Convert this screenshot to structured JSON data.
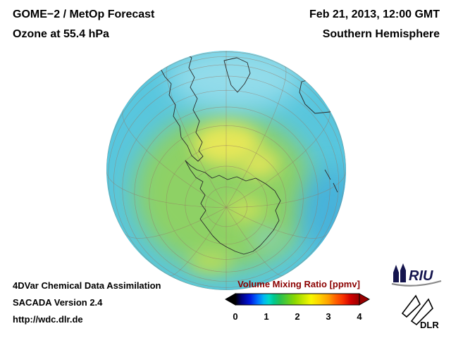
{
  "header": {
    "line1": "GOME−2 / MetOp Forecast",
    "line2": "Ozone at 55.4 hPa",
    "right1": "Feb 21, 2013, 12:00 GMT",
    "right2": "Southern Hemisphere"
  },
  "footer": {
    "line1": "4DVar Chemical Data Assimilation",
    "line2": "SACADA Version 2.4",
    "line3": "http://wdc.dlr.de"
  },
  "colorbar": {
    "title": "Volume Mixing Ratio [ppmv]",
    "ticks": [
      "0",
      "1",
      "2",
      "3",
      "4"
    ],
    "title_color": "#8b0000",
    "arrow_left_color": "#000000",
    "arrow_right_color": "#980000"
  },
  "logos": {
    "riu_text": "RIU",
    "dlr_text": "DLR"
  },
  "chart_data": {
    "type": "heatmap",
    "title": "Volume Mixing Ratio [ppmv]",
    "projection": "Southern Hemisphere orthographic globe, South Pole near center",
    "colorbar_min": 0,
    "colorbar_max": 4,
    "colorbar_ticks": [
      0,
      1,
      2,
      3,
      4
    ],
    "colormap": [
      "#000000",
      "#000080",
      "#0018e0",
      "#0070ff",
      "#00b8f0",
      "#00d8c8",
      "#00c890",
      "#28c050",
      "#58cc28",
      "#8cd800",
      "#c8e800",
      "#f8f800",
      "#ffd000",
      "#ffa000",
      "#ff6000",
      "#f83000",
      "#d00000",
      "#980000"
    ],
    "field_summary": "Ozone mixing ratio at 55.4 hPa: ~1 ppmv cyan near globe limb and top, 1.5-2 ppmv green band over mid/high southern latitudes and Antarctica, ~2.5 ppmv yellow patches north of Antarctica"
  }
}
